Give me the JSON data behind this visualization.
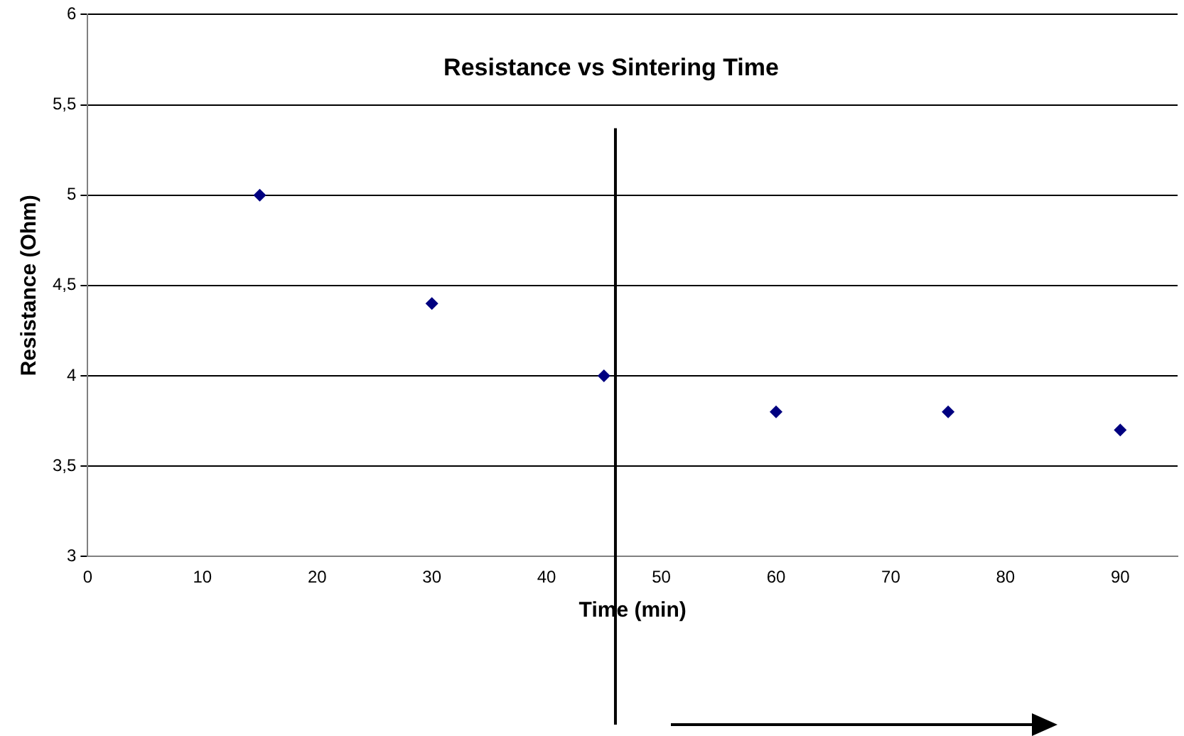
{
  "chart_data": {
    "type": "scatter",
    "title": "Resistance vs Sintering Time",
    "xlabel": "Time (min)",
    "ylabel": "Resistance (Ohm)",
    "x": [
      15,
      30,
      45,
      60,
      75,
      90
    ],
    "series": [
      {
        "color": "#000080",
        "values": [
          5,
          4.4,
          4,
          3.8,
          3.8,
          3.7
        ]
      }
    ],
    "xlim": [
      0,
      95
    ],
    "xticks": [
      0,
      10,
      20,
      30,
      40,
      50,
      60,
      70,
      80,
      90
    ],
    "ylim": [
      3,
      6
    ],
    "yticks": [
      3,
      {
        "value": 3.5,
        "label": "3,5"
      },
      4,
      {
        "value": 4.5,
        "label": "4,5"
      },
      5,
      {
        "value": 5.5,
        "label": "5,5"
      },
      6
    ],
    "ref_lines": [
      {
        "axis": "x",
        "value": 46,
        "color": "#000000"
      }
    ],
    "grid": "y",
    "legend": false,
    "marker": "diamond"
  }
}
